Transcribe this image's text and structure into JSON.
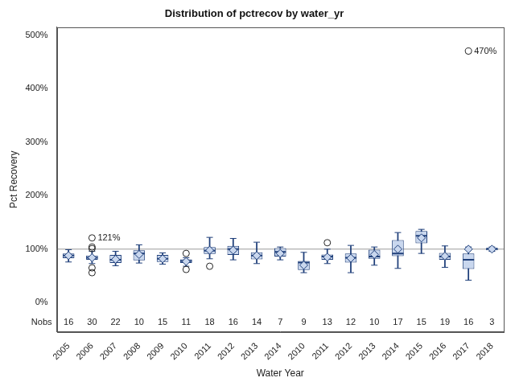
{
  "chart_data": {
    "type": "boxplot",
    "title": "Distribution of pctrecov by water_yr",
    "x_label": "Water Year",
    "y_label": "Pct Recovery",
    "categories": [
      "2005",
      "2006",
      "2007",
      "2008",
      "2009",
      "2010",
      "2011",
      "2012",
      "2013",
      "2014",
      "2010",
      "2011",
      "2012",
      "2013",
      "2014",
      "2015",
      "2016",
      "2017",
      "2018"
    ],
    "boxes": [
      {
        "min": 76,
        "q1": 83,
        "median": 88,
        "q3": 92,
        "max": 99,
        "mean": 88,
        "outliers": []
      },
      {
        "min": 73,
        "q1": 80,
        "median": 84,
        "q3": 88,
        "max": 96,
        "mean": 84,
        "outliers": [
          121,
          104,
          101,
          65,
          56
        ]
      },
      {
        "min": 69,
        "q1": 74,
        "median": 80,
        "q3": 89,
        "max": 96,
        "mean": 81,
        "outliers": []
      },
      {
        "min": 74,
        "q1": 79,
        "median": 92,
        "q3": 98,
        "max": 108,
        "mean": 90,
        "outliers": []
      },
      {
        "min": 72,
        "q1": 76,
        "median": 82,
        "q3": 89,
        "max": 93,
        "mean": 82,
        "outliers": []
      },
      {
        "min": 68,
        "q1": 74,
        "median": 78,
        "q3": 81,
        "max": 84,
        "mean": 77,
        "outliers": [
          92,
          62
        ]
      },
      {
        "min": 82,
        "q1": 91,
        "median": 97,
        "q3": 104,
        "max": 122,
        "mean": 98,
        "outliers": [
          68
        ]
      },
      {
        "min": 80,
        "q1": 89,
        "median": 100,
        "q3": 106,
        "max": 120,
        "mean": 98,
        "outliers": []
      },
      {
        "min": 73,
        "q1": 81,
        "median": 88,
        "q3": 94,
        "max": 113,
        "mean": 88,
        "outliers": []
      },
      {
        "min": 80,
        "q1": 86,
        "median": 95,
        "q3": 102,
        "max": 104,
        "mean": 92,
        "outliers": []
      },
      {
        "min": 56,
        "q1": 61,
        "median": 75,
        "q3": 78,
        "max": 94,
        "mean": 70,
        "outliers": []
      },
      {
        "min": 73,
        "q1": 80,
        "median": 86,
        "q3": 90,
        "max": 100,
        "mean": 85,
        "outliers": [
          112
        ]
      },
      {
        "min": 56,
        "q1": 75,
        "median": 84,
        "q3": 92,
        "max": 107,
        "mean": 83,
        "outliers": []
      },
      {
        "min": 70,
        "q1": 82,
        "median": 86,
        "q3": 99,
        "max": 104,
        "mean": 90,
        "outliers": []
      },
      {
        "min": 64,
        "q1": 87,
        "median": 92,
        "q3": 117,
        "max": 131,
        "mean": 100,
        "outliers": []
      },
      {
        "min": 92,
        "q1": 111,
        "median": 125,
        "q3": 134,
        "max": 137,
        "mean": 121,
        "outliers": []
      },
      {
        "min": 66,
        "q1": 80,
        "median": 86,
        "q3": 93,
        "max": 106,
        "mean": 87,
        "outliers": []
      },
      {
        "min": 42,
        "q1": 63,
        "median": 80,
        "q3": 92,
        "max": 104,
        "mean": 100,
        "outliers": [
          470
        ]
      },
      {
        "min": 96,
        "q1": 98,
        "median": 101,
        "q3": 102,
        "max": 104,
        "mean": 100,
        "outliers": []
      }
    ],
    "nobs_label": "Nobs",
    "nobs": [
      16,
      30,
      22,
      10,
      15,
      11,
      18,
      16,
      14,
      7,
      9,
      13,
      12,
      10,
      17,
      15,
      19,
      16,
      3
    ],
    "annotations": [
      {
        "category": "2006",
        "value": 121,
        "text": "121%"
      },
      {
        "category": "2017",
        "value": 470,
        "text": "470%"
      }
    ],
    "reference_line": 100,
    "ylim": [
      -55,
      515
    ],
    "yticks": [
      {
        "value": 0,
        "label": "0%"
      },
      {
        "value": 100,
        "label": "100%"
      },
      {
        "value": 200,
        "label": "200%"
      },
      {
        "value": 300,
        "label": "300%"
      },
      {
        "value": 400,
        "label": "400%"
      },
      {
        "value": 500,
        "label": "500%"
      }
    ],
    "color": "#c9d7ee",
    "marker": "diamond",
    "grid": false
  }
}
